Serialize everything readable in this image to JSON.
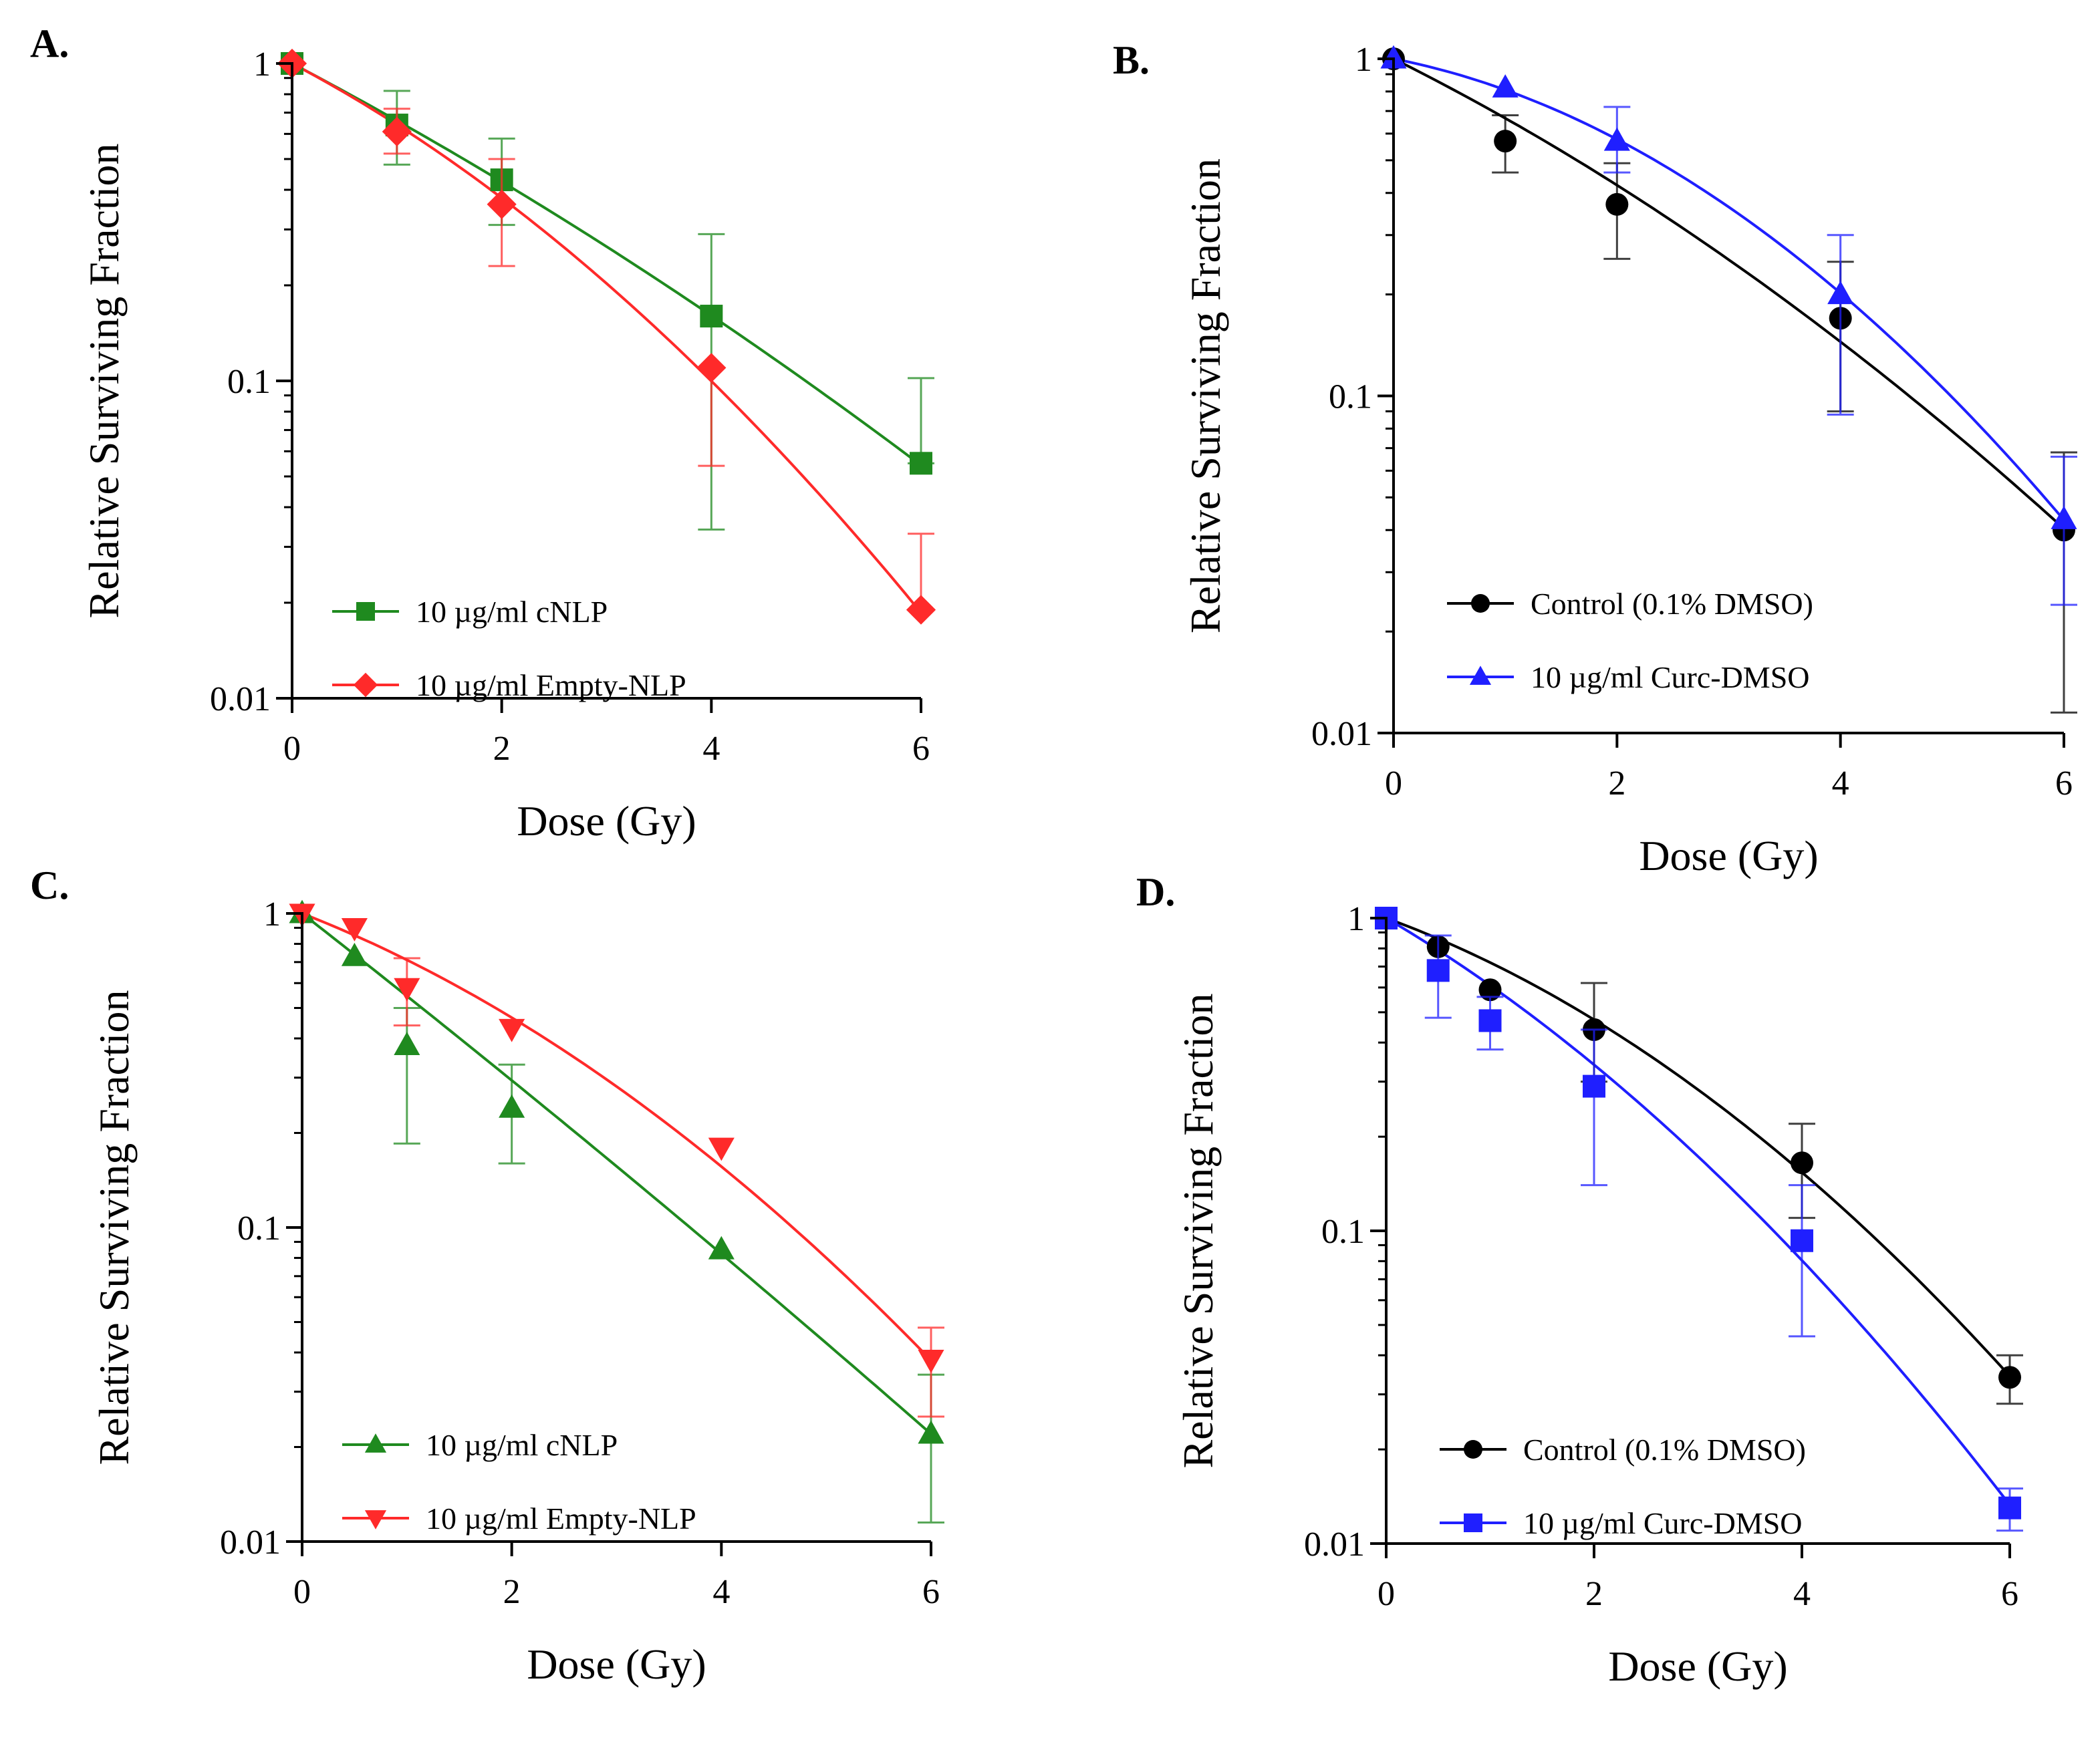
{
  "figure": {
    "panels": [
      "A.",
      "B.",
      "C.",
      "D."
    ]
  },
  "chart_data": [
    {
      "type": "scatter",
      "panel": "A.",
      "xlabel": "Dose (Gy)",
      "ylabel": "Relative Surviving Fraction",
      "xlim": [
        0,
        6
      ],
      "ylim": [
        0.01,
        1
      ],
      "yscale": "log",
      "xticks": [
        0,
        2,
        4,
        6
      ],
      "yticks": [
        0.01,
        0.1,
        1
      ],
      "ytick_labels": [
        "0.01",
        "0.1",
        "1"
      ],
      "legend_position": "bottom-left",
      "series": [
        {
          "name": "10 µg/ml cNLP",
          "color": "#1f8a1f",
          "marker": "square",
          "x": [
            0,
            1,
            2,
            4,
            6
          ],
          "y": [
            1.0,
            0.64,
            0.43,
            0.16,
            0.055
          ],
          "err_lo": [
            1.0,
            0.48,
            0.31,
            0.034,
            0.055
          ],
          "err_hi": [
            1.0,
            0.82,
            0.58,
            0.29,
            0.102
          ],
          "fit": {
            "alpha": 0.4,
            "beta": 0.0143
          }
        },
        {
          "name": "10 µg/ml Empty-NLP",
          "color": "#ff2a2a",
          "marker": "diamond",
          "x": [
            0,
            1,
            2,
            4,
            6
          ],
          "y": [
            1.0,
            0.61,
            0.36,
            0.11,
            0.019
          ],
          "err_lo": [
            1.0,
            0.52,
            0.23,
            0.054,
            0.019
          ],
          "err_hi": [
            1.0,
            0.72,
            0.5,
            0.11,
            0.033
          ],
          "fit": {
            "alpha": 0.4,
            "beta": 0.044
          }
        }
      ]
    },
    {
      "type": "scatter",
      "panel": "B.",
      "xlabel": "Dose (Gy)",
      "ylabel": "Relative Surviving Fraction",
      "xlim": [
        0,
        6
      ],
      "ylim": [
        0.01,
        1
      ],
      "yscale": "log",
      "xticks": [
        0,
        2,
        4,
        6
      ],
      "yticks": [
        0.01,
        0.1,
        1
      ],
      "ytick_labels": [
        "0.01",
        "0.1",
        "1"
      ],
      "legend_position": "bottom-left",
      "series": [
        {
          "name": "Control (0.1% DMSO)",
          "color": "#000000",
          "marker": "circle",
          "x": [
            0,
            1,
            2,
            4,
            6
          ],
          "y": [
            1.0,
            0.57,
            0.37,
            0.17,
            0.04
          ],
          "err_lo": [
            1.0,
            0.46,
            0.255,
            0.09,
            0.0115
          ],
          "err_hi": [
            1.0,
            0.68,
            0.49,
            0.25,
            0.068
          ],
          "fit": {
            "alpha": 0.38,
            "beta": 0.0258
          }
        },
        {
          "name": "10 µg/ml Curc-DMSO",
          "color": "#1f1fff",
          "marker": "triangle-up",
          "x": [
            0,
            1,
            2,
            4,
            6
          ],
          "y": [
            1.0,
            0.82,
            0.57,
            0.2,
            0.043
          ],
          "err_lo": [
            1.0,
            0.82,
            0.46,
            0.088,
            0.024
          ],
          "err_hi": [
            1.0,
            0.82,
            0.72,
            0.3,
            0.066
          ],
          "fit": {
            "alpha": 0.15,
            "beta": 0.0625
          }
        }
      ]
    },
    {
      "type": "scatter",
      "panel": "C.",
      "xlabel": "Dose (Gy)",
      "ylabel": "Relative Surviving Fraction",
      "xlim": [
        0,
        6
      ],
      "ylim": [
        0.01,
        1
      ],
      "yscale": "log",
      "xticks": [
        0,
        2,
        4,
        6
      ],
      "yticks": [
        0.01,
        0.1,
        1
      ],
      "ytick_labels": [
        "0.01",
        "0.1",
        "1"
      ],
      "legend_position": "bottom-left",
      "series": [
        {
          "name": "10 µg/ml cNLP",
          "color": "#1f8a1f",
          "marker": "triangle-up",
          "x": [
            0,
            0.5,
            1,
            2,
            4,
            6
          ],
          "y": [
            1.0,
            0.73,
            0.38,
            0.24,
            0.085,
            0.022
          ],
          "err_lo": [
            1.0,
            0.73,
            0.185,
            0.16,
            0.085,
            0.0115
          ],
          "err_hi": [
            1.0,
            0.73,
            0.5,
            0.33,
            0.085,
            0.034
          ],
          "fit": {
            "alpha": 0.6,
            "beta": 0.006
          }
        },
        {
          "name": "10 µg/ml Empty-NLP",
          "color": "#ff2a2a",
          "marker": "triangle-down",
          "x": [
            0,
            0.5,
            1,
            2,
            4,
            6
          ],
          "y": [
            1.0,
            0.9,
            0.58,
            0.43,
            0.18,
            0.038
          ],
          "err_lo": [
            1.0,
            0.9,
            0.44,
            0.43,
            0.18,
            0.025
          ],
          "err_hi": [
            1.0,
            0.9,
            0.72,
            0.43,
            0.18,
            0.048
          ],
          "fit": {
            "alpha": 0.3,
            "beta": 0.041
          }
        }
      ]
    },
    {
      "type": "scatter",
      "panel": "D.",
      "xlabel": "Dose (Gy)",
      "ylabel": "Relative Surviving Fraction",
      "xlim": [
        0,
        6
      ],
      "ylim": [
        0.01,
        1
      ],
      "yscale": "log",
      "xticks": [
        0,
        2,
        4,
        6
      ],
      "yticks": [
        0.01,
        0.1,
        1
      ],
      "ytick_labels": [
        "0.01",
        "0.1",
        "1"
      ],
      "legend_position": "bottom-left",
      "series": [
        {
          "name": "Control (0.1% DMSO)",
          "color": "#000000",
          "marker": "circle",
          "x": [
            0,
            0.5,
            1,
            2,
            4,
            6
          ],
          "y": [
            1.0,
            0.81,
            0.59,
            0.44,
            0.165,
            0.034
          ],
          "err_lo": [
            1.0,
            0.81,
            0.59,
            0.3,
            0.11,
            0.028
          ],
          "err_hi": [
            1.0,
            0.81,
            0.59,
            0.62,
            0.22,
            0.04
          ],
          "fit": {
            "alpha": 0.28,
            "beta": 0.047
          }
        },
        {
          "name": "10 µg/ml Curc-DMSO",
          "color": "#1f1fff",
          "marker": "square",
          "x": [
            0,
            0.5,
            1,
            2,
            4,
            6
          ],
          "y": [
            1.0,
            0.68,
            0.47,
            0.29,
            0.093,
            0.013
          ],
          "err_lo": [
            1.0,
            0.48,
            0.38,
            0.14,
            0.046,
            0.011
          ],
          "err_hi": [
            1.0,
            0.88,
            0.56,
            0.44,
            0.14,
            0.015
          ],
          "fit": {
            "alpha": 0.45,
            "beta": 0.045
          }
        }
      ]
    }
  ]
}
